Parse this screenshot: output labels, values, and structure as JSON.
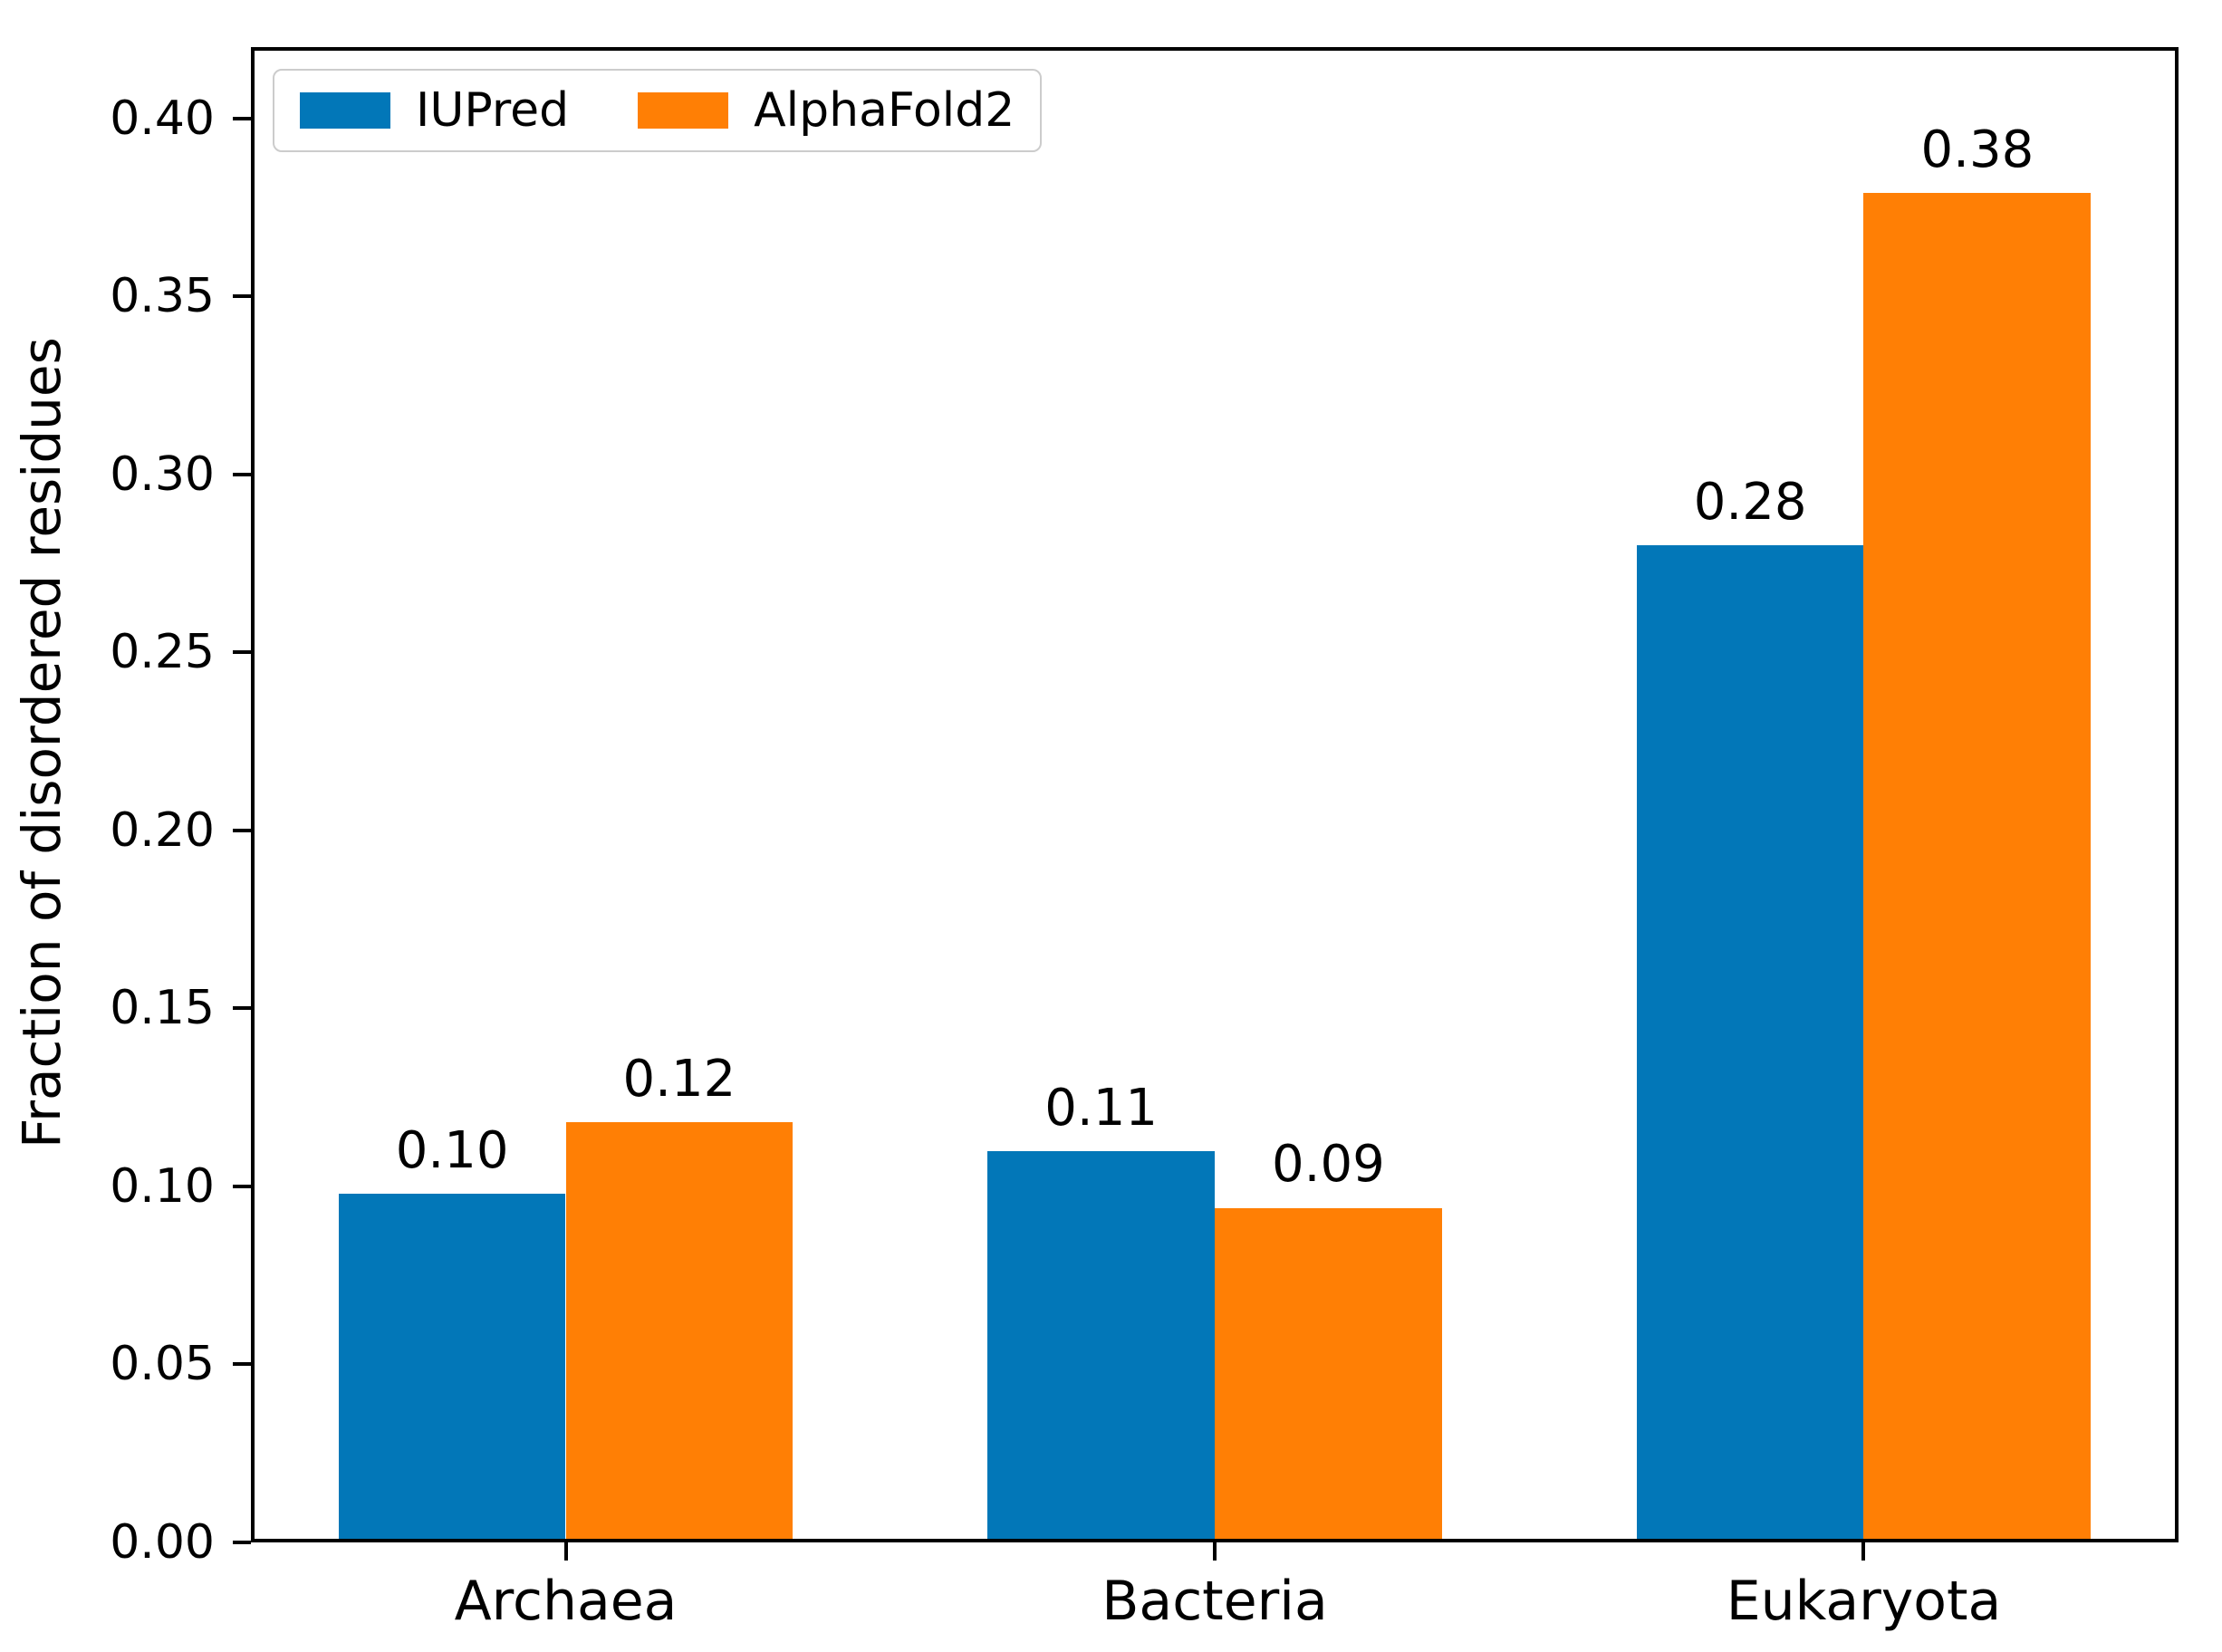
{
  "figure": {
    "background": "#ffffff",
    "frame_color": "#000000",
    "text_color": "#000000",
    "legend_border_color": "#cccccc"
  },
  "chart_data": {
    "type": "bar",
    "title": "",
    "xlabel": "",
    "ylabel": "Fraction of disordered residues",
    "categories": [
      "Archaea",
      "Bacteria",
      "Eukaryota"
    ],
    "series": [
      {
        "name": "IUPred",
        "color": "#0277b8",
        "values": [
          0.1,
          0.11,
          0.28
        ],
        "value_labels": [
          "0.10",
          "0.11",
          "0.28"
        ],
        "plotted_values": [
          0.098,
          0.11,
          0.28
        ]
      },
      {
        "name": "AlphaFold2",
        "color": "#ff7f05",
        "values": [
          0.12,
          0.09,
          0.38
        ],
        "value_labels": [
          "0.12",
          "0.09",
          "0.38"
        ],
        "plotted_values": [
          0.118,
          0.094,
          0.379
        ]
      }
    ],
    "ylim": [
      0,
      0.42
    ],
    "xlim": [
      -0.485,
      2.485
    ],
    "yticks": [
      "0.00",
      "0.05",
      "0.10",
      "0.15",
      "0.20",
      "0.25",
      "0.30",
      "0.35",
      "0.40"
    ],
    "bar_width": 0.35,
    "grid": false,
    "legend": {
      "position": "upper left",
      "entries": [
        "IUPred",
        "AlphaFold2"
      ]
    }
  }
}
